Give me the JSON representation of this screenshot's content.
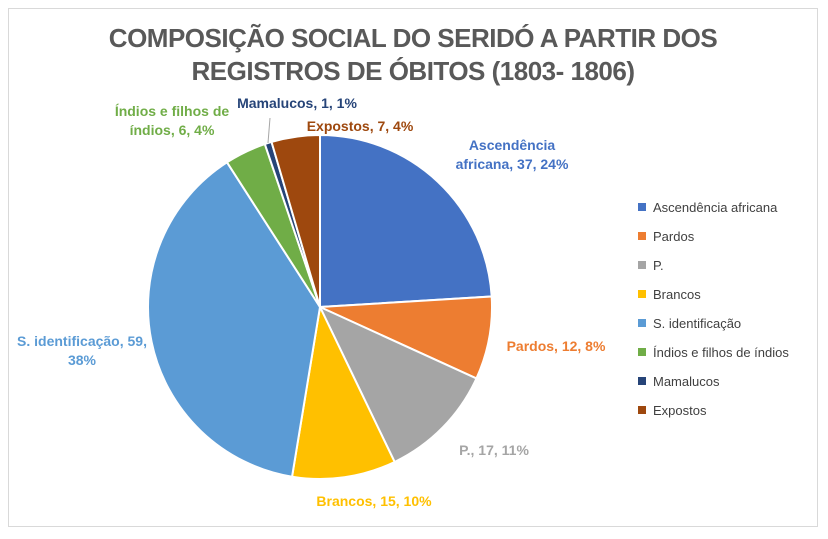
{
  "chart_data": {
    "type": "pie",
    "title": [
      "COMPOSIÇÃO SOCIAL DO SERIDÓ A PARTIR DOS",
      "REGISTROS DE ÓBITOS  (1803- 1806)"
    ],
    "slices": [
      {
        "name": "Ascendência africana",
        "value": 37,
        "percent": 24,
        "color": "#4472C4",
        "label_lines": [
          "Ascendência",
          "africana, 37, 24%"
        ]
      },
      {
        "name": "Pardos",
        "value": 12,
        "percent": 8,
        "color": "#ED7D31",
        "label_lines": [
          "Pardos, 12, 8%"
        ]
      },
      {
        "name": "P.",
        "value": 17,
        "percent": 11,
        "color": "#A5A5A5",
        "label_lines": [
          "P., 17, 11%"
        ]
      },
      {
        "name": "Brancos",
        "value": 15,
        "percent": 10,
        "color": "#FFC000",
        "label_lines": [
          "Brancos, 15, 10%"
        ]
      },
      {
        "name": "S. identificação",
        "value": 59,
        "percent": 38,
        "color": "#5B9BD5",
        "label_lines": [
          "S. identificação, 59,",
          "38%"
        ]
      },
      {
        "name": "Índios e filhos de índios",
        "value": 6,
        "percent": 4,
        "color": "#70AD47",
        "label_lines": [
          "Índios e filhos de",
          "índios, 6, 4%"
        ]
      },
      {
        "name": "Mamalucos",
        "value": 1,
        "percent": 1,
        "color": "#264478",
        "label_lines": [
          "Mamalucos, 1, 1%"
        ]
      },
      {
        "name": "Expostos",
        "value": 7,
        "percent": 4,
        "color": "#9E480E",
        "label_lines": [
          "Expostos, 7, 4%"
        ]
      }
    ],
    "legend_position": "right"
  }
}
